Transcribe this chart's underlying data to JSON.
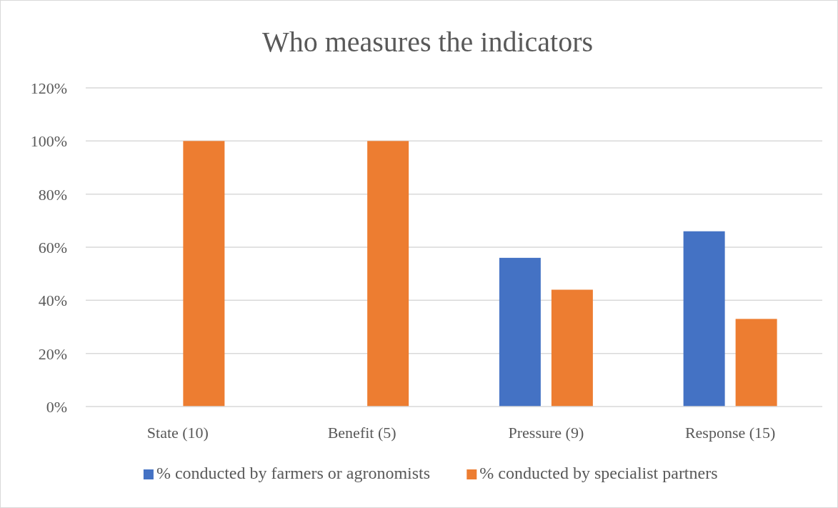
{
  "chart_data": {
    "type": "bar",
    "title": "Who measures the indicators",
    "categories": [
      "State (10)",
      "Benefit (5)",
      "Pressure (9)",
      "Response (15)"
    ],
    "series": [
      {
        "name": "% conducted by farmers or agronomists",
        "color": "#4472c4",
        "values": [
          0,
          0,
          56,
          66
        ]
      },
      {
        "name": "% conducted by specialist partners",
        "color": "#ed7d31",
        "values": [
          100,
          100,
          44,
          33
        ]
      }
    ],
    "ylim": [
      0,
      120
    ],
    "yticks": [
      {
        "value": 0,
        "label": "0%"
      },
      {
        "value": 20,
        "label": "20%"
      },
      {
        "value": 40,
        "label": "40%"
      },
      {
        "value": 60,
        "label": "60%"
      },
      {
        "value": 80,
        "label": "80%"
      },
      {
        "value": 100,
        "label": "100%"
      },
      {
        "value": 120,
        "label": "120%"
      }
    ],
    "grid": "y",
    "legend": "bottom"
  }
}
